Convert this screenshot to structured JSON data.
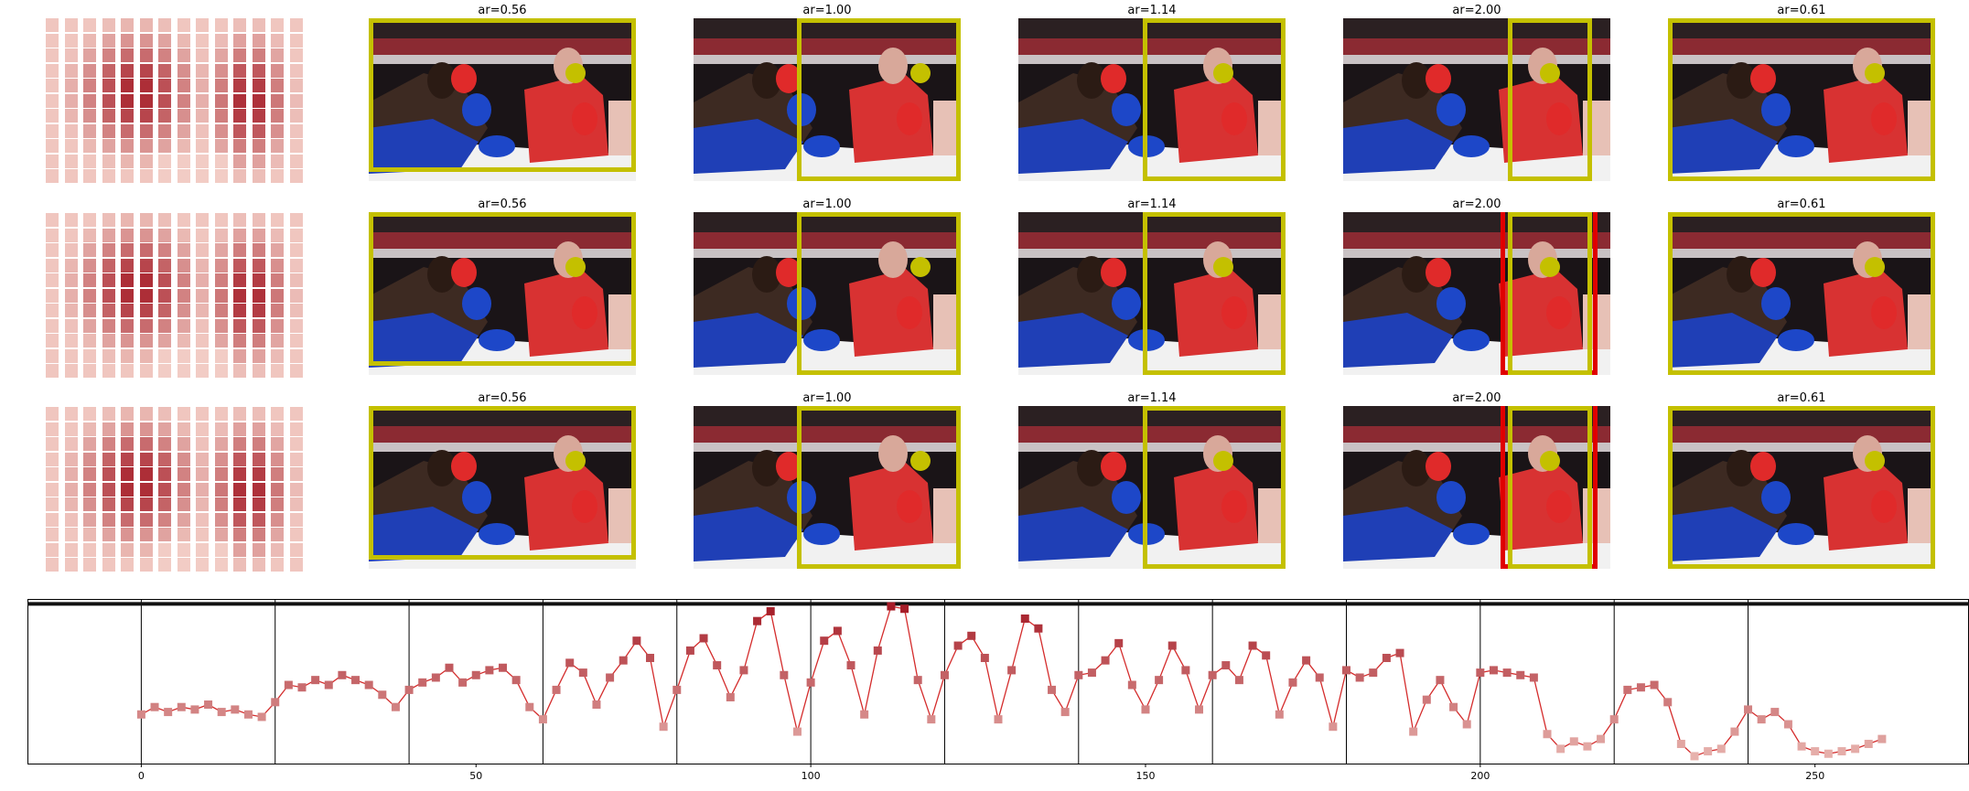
{
  "colors": {
    "box": "#c4c000",
    "box_alt": "#e00000",
    "heat_low": "#fde4da",
    "heat_high": "#a51c27",
    "line": "#d42c2c"
  },
  "rows": [
    {
      "panels": [
        {
          "title": "ar=0.56",
          "alt_box": false
        },
        {
          "title": "ar=1.00",
          "alt_box": false
        },
        {
          "title": "ar=1.14",
          "alt_box": false
        },
        {
          "title": "ar=2.00",
          "alt_box": false
        },
        {
          "title": "ar=0.61",
          "alt_box": false
        }
      ]
    },
    {
      "panels": [
        {
          "title": "ar=0.56",
          "alt_box": false
        },
        {
          "title": "ar=1.00",
          "alt_box": false
        },
        {
          "title": "ar=1.14",
          "alt_box": false
        },
        {
          "title": "ar=2.00",
          "alt_box": true
        },
        {
          "title": "ar=0.61",
          "alt_box": false
        }
      ]
    },
    {
      "panels": [
        {
          "title": "ar=0.56",
          "alt_box": false
        },
        {
          "title": "ar=1.00",
          "alt_box": false
        },
        {
          "title": "ar=1.14",
          "alt_box": false
        },
        {
          "title": "ar=2.00",
          "alt_box": true
        },
        {
          "title": "ar=0.61",
          "alt_box": false
        }
      ]
    }
  ],
  "chart_data": {
    "type": "line",
    "title": "",
    "xlabel": "",
    "ylabel": "",
    "xlim": [
      -17,
      273
    ],
    "ylim": [
      -1,
      5.7
    ],
    "xticks": [
      0,
      50,
      100,
      150,
      200,
      250
    ],
    "yticks": [
      -1,
      0,
      1,
      2,
      3,
      4,
      5
    ],
    "hline": 5.5,
    "vlines": [
      0,
      20,
      40,
      60,
      80,
      100,
      120,
      140,
      160,
      180,
      200,
      220,
      240
    ],
    "grid": false,
    "marker": "square",
    "series": [
      {
        "name": "",
        "x": [
          0,
          2,
          4,
          6,
          8,
          10,
          12,
          14,
          16,
          18,
          20,
          22,
          24,
          26,
          28,
          30,
          32,
          34,
          36,
          38,
          40,
          42,
          44,
          46,
          48,
          50,
          52,
          54,
          56,
          58,
          60,
          62,
          64,
          66,
          68,
          70,
          72,
          74,
          76,
          78,
          80,
          82,
          84,
          86,
          88,
          90,
          92,
          94,
          96,
          98,
          100,
          102,
          104,
          106,
          108,
          110,
          112,
          114,
          116,
          118,
          120,
          122,
          124,
          126,
          128,
          130,
          132,
          134,
          136,
          138,
          140,
          142,
          144,
          146,
          148,
          150,
          152,
          154,
          156,
          158,
          160,
          162,
          164,
          166,
          168,
          170,
          172,
          174,
          176,
          178,
          180,
          182,
          184,
          186,
          188,
          190,
          192,
          194,
          196,
          198,
          200,
          202,
          204,
          206,
          208,
          210,
          212,
          214,
          216,
          218,
          220,
          222,
          224,
          226,
          228,
          230,
          232,
          234,
          236,
          238,
          240,
          242,
          244,
          246,
          248,
          250,
          252,
          254,
          256,
          258,
          260
        ],
        "y": [
          1.0,
          1.3,
          1.1,
          1.3,
          1.2,
          1.4,
          1.1,
          1.2,
          1.0,
          0.9,
          1.5,
          2.2,
          2.1,
          2.4,
          2.2,
          2.6,
          2.4,
          2.2,
          1.8,
          1.3,
          2.0,
          2.3,
          2.5,
          2.9,
          2.3,
          2.6,
          2.8,
          2.9,
          2.4,
          1.3,
          0.8,
          2.0,
          3.1,
          2.7,
          1.4,
          2.5,
          3.2,
          4.0,
          3.3,
          0.5,
          2.0,
          3.6,
          4.1,
          3.0,
          1.7,
          2.8,
          4.8,
          5.2,
          2.6,
          0.3,
          2.3,
          4.0,
          4.4,
          3.0,
          1.0,
          3.6,
          5.4,
          5.3,
          2.4,
          0.8,
          2.6,
          3.8,
          4.2,
          3.3,
          0.8,
          2.8,
          4.9,
          4.5,
          2.0,
          1.1,
          2.6,
          2.7,
          3.2,
          3.9,
          2.2,
          1.2,
          2.4,
          3.8,
          2.8,
          1.2,
          2.6,
          3.0,
          2.4,
          3.8,
          3.4,
          1.0,
          2.3,
          3.2,
          2.5,
          0.5,
          2.8,
          2.5,
          2.7,
          3.3,
          3.5,
          0.3,
          1.6,
          2.4,
          1.3,
          0.6,
          2.7,
          2.8,
          2.7,
          2.6,
          2.5,
          0.2,
          -0.4,
          -0.1,
          -0.3,
          0.0,
          0.8,
          2.0,
          2.1,
          2.2,
          1.5,
          -0.2,
          -0.7,
          -0.5,
          -0.4,
          0.3,
          1.2,
          0.8,
          1.1,
          0.6,
          -0.3,
          -0.5,
          -0.6,
          -0.5,
          -0.4,
          -0.2,
          0.0
        ]
      }
    ]
  }
}
